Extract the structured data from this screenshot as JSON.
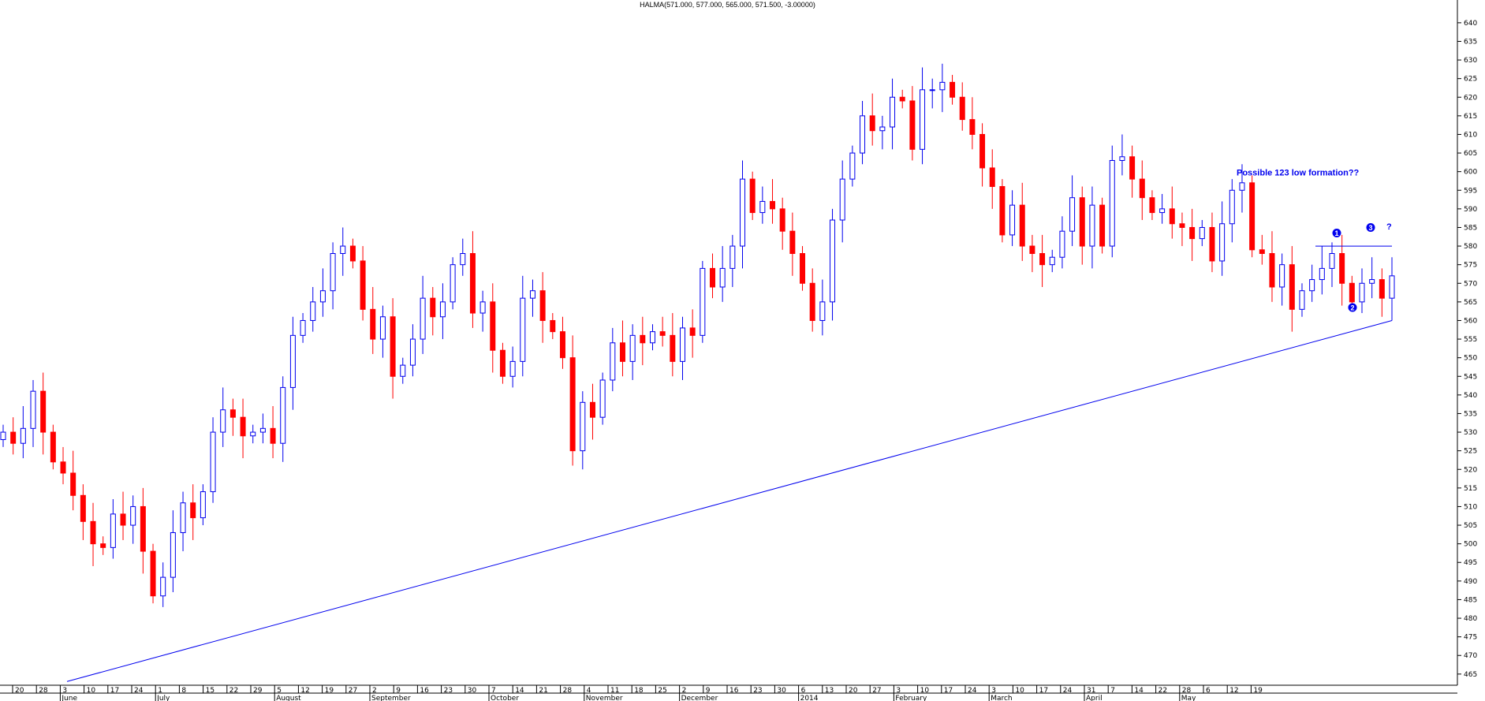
{
  "title": "HALMA(571.000, 577.000, 565.000, 571.500, -3.00000)",
  "chart_data": {
    "type": "candlestick",
    "instrument": "HALMA",
    "ylim": [
      462,
      644
    ],
    "y_ticks": [
      465,
      470,
      475,
      480,
      485,
      490,
      495,
      500,
      505,
      510,
      515,
      520,
      525,
      530,
      535,
      540,
      545,
      550,
      555,
      560,
      565,
      570,
      575,
      580,
      585,
      590,
      595,
      600,
      605,
      610,
      615,
      620,
      625,
      630,
      635,
      640
    ],
    "x_day_ticks": [
      "20",
      "28",
      "3",
      "10",
      "17",
      "24",
      "1",
      "8",
      "15",
      "22",
      "29",
      "5",
      "12",
      "19",
      "27",
      "2",
      "9",
      "16",
      "23",
      "30",
      "7",
      "14",
      "21",
      "28",
      "4",
      "11",
      "18",
      "25",
      "2",
      "9",
      "16",
      "23",
      "30",
      "6",
      "13",
      "20",
      "27",
      "3",
      "10",
      "17",
      "24",
      "3",
      "10",
      "17",
      "24",
      "31",
      "7",
      "14",
      "22",
      "28",
      "6",
      "12",
      "19"
    ],
    "x_months": [
      {
        "label": "June",
        "day_index": 2
      },
      {
        "label": "July",
        "day_index": 6
      },
      {
        "label": "August",
        "day_index": 11
      },
      {
        "label": "September",
        "day_index": 15
      },
      {
        "label": "October",
        "day_index": 20
      },
      {
        "label": "November",
        "day_index": 24
      },
      {
        "label": "December",
        "day_index": 28
      },
      {
        "label": "2014",
        "day_index": 33
      },
      {
        "label": "February",
        "day_index": 37
      },
      {
        "label": "March",
        "day_index": 41
      },
      {
        "label": "April",
        "day_index": 45
      },
      {
        "label": "May",
        "day_index": 49
      }
    ],
    "candles_close": [
      530,
      527,
      531,
      541,
      530,
      522,
      519,
      513,
      506,
      500,
      499,
      508,
      505,
      510,
      498,
      486,
      491,
      503,
      511,
      507,
      514,
      530,
      536,
      534,
      529,
      530,
      531,
      527,
      542,
      556,
      560,
      565,
      568,
      578,
      580,
      576,
      563,
      555,
      561,
      545,
      548,
      555,
      566,
      561,
      565,
      575,
      578,
      562,
      565,
      552,
      545,
      549,
      566,
      568,
      560,
      557,
      550,
      525,
      538,
      534,
      544,
      554,
      549,
      556,
      554,
      557,
      556,
      549,
      558,
      556,
      574,
      569,
      574,
      580,
      598,
      589,
      592,
      590,
      584,
      578,
      570,
      560,
      565,
      587,
      598,
      605,
      615,
      611,
      612,
      620,
      619,
      606,
      622,
      622,
      624,
      620,
      614,
      610,
      601,
      596,
      583,
      591,
      580,
      578,
      575,
      577,
      584,
      593,
      580,
      591,
      580,
      603,
      604,
      598,
      593,
      589,
      590,
      586,
      585,
      582,
      585,
      576,
      586,
      595,
      597,
      579,
      578,
      569,
      575,
      563,
      568,
      571,
      574,
      578,
      570,
      565,
      570,
      571,
      566,
      572
    ],
    "trendline": {
      "start": {
        "date": "28 May",
        "value": 463
      },
      "end": {
        "date": "mid May 2014",
        "value": 560
      }
    },
    "resistance_line": {
      "value": 580
    },
    "annotations": [
      {
        "text": "Possible 123 low formation??"
      },
      {
        "text": "1"
      },
      {
        "text": "2"
      },
      {
        "text": "3"
      },
      {
        "text": "?"
      }
    ],
    "colors": {
      "up": "#0000ee",
      "down": "#ff0000",
      "trend": "#0000ee",
      "axis": "#000000"
    }
  }
}
